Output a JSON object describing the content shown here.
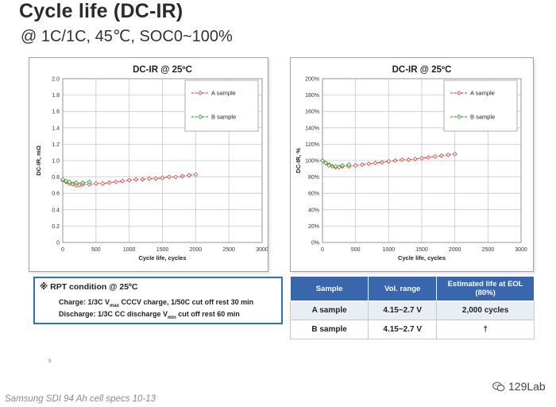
{
  "slide": {
    "title": "Cycle life (DC-IR)",
    "subtitle": "@ 1C/1C, 45℃, SOC0~100%"
  },
  "chart_data": [
    {
      "type": "line",
      "title": "DC-IR @ 25ºC",
      "xlabel": "Cycle life, cycles",
      "ylabel": "DC-IR, mΩ",
      "xlim": [
        0,
        3000
      ],
      "ylim": [
        0,
        2.0
      ],
      "x_ticks": [
        "0",
        "500",
        "1000",
        "1500",
        "2000",
        "2500",
        "3000"
      ],
      "y_ticks": [
        "0",
        "0.2",
        "0.4",
        "0.6",
        "0.8",
        "1.0",
        "1.2",
        "1.4",
        "1.6",
        "1.8",
        "2.0"
      ],
      "grid": true,
      "legend": "top-right",
      "series": [
        {
          "name": "A sample",
          "color": "#d9534f",
          "points": [
            [
              0,
              0.76
            ],
            [
              50,
              0.74
            ],
            [
              100,
              0.72
            ],
            [
              150,
              0.71
            ],
            [
              200,
              0.7
            ],
            [
              250,
              0.7
            ],
            [
              300,
              0.71
            ],
            [
              400,
              0.71
            ],
            [
              500,
              0.72
            ],
            [
              600,
              0.72
            ],
            [
              700,
              0.73
            ],
            [
              800,
              0.74
            ],
            [
              900,
              0.75
            ],
            [
              1000,
              0.76
            ],
            [
              1100,
              0.77
            ],
            [
              1200,
              0.77
            ],
            [
              1300,
              0.78
            ],
            [
              1400,
              0.78
            ],
            [
              1500,
              0.79
            ],
            [
              1600,
              0.8
            ],
            [
              1700,
              0.8
            ],
            [
              1800,
              0.81
            ],
            [
              1900,
              0.82
            ],
            [
              2000,
              0.83
            ]
          ]
        },
        {
          "name": "B sample",
          "color": "#3aaa35",
          "points": [
            [
              0,
              0.77
            ],
            [
              50,
              0.75
            ],
            [
              100,
              0.74
            ],
            [
              200,
              0.73
            ],
            [
              300,
              0.73
            ],
            [
              400,
              0.74
            ]
          ]
        }
      ]
    },
    {
      "type": "line",
      "title": "DC-IR @ 25ºC",
      "xlabel": "Cycle life, cycles",
      "ylabel": "DC-IR, %",
      "xlim": [
        0,
        3000
      ],
      "ylim": [
        0,
        200
      ],
      "x_ticks": [
        "0",
        "500",
        "1000",
        "1500",
        "2000",
        "2500",
        "3000"
      ],
      "y_ticks": [
        "0%",
        "20%",
        "40%",
        "60%",
        "80%",
        "100%",
        "120%",
        "140%",
        "160%",
        "180%",
        "200%"
      ],
      "grid": true,
      "legend": "top-right",
      "series": [
        {
          "name": "A sample",
          "color": "#d9534f",
          "points": [
            [
              0,
              100
            ],
            [
              50,
              97
            ],
            [
              100,
              95
            ],
            [
              150,
              93
            ],
            [
              200,
              92
            ],
            [
              250,
              92
            ],
            [
              300,
              93
            ],
            [
              400,
              93
            ],
            [
              500,
              94
            ],
            [
              600,
              95
            ],
            [
              700,
              96
            ],
            [
              800,
              97
            ],
            [
              900,
              98
            ],
            [
              1000,
              99
            ],
            [
              1100,
              100
            ],
            [
              1200,
              101
            ],
            [
              1300,
              101
            ],
            [
              1400,
              102
            ],
            [
              1500,
              103
            ],
            [
              1600,
              104
            ],
            [
              1700,
              105
            ],
            [
              1800,
              106
            ],
            [
              1900,
              107
            ],
            [
              2000,
              108
            ]
          ]
        },
        {
          "name": "B sample",
          "color": "#3aaa35",
          "points": [
            [
              0,
              100
            ],
            [
              50,
              97
            ],
            [
              100,
              94
            ],
            [
              200,
              93
            ],
            [
              300,
              94
            ],
            [
              400,
              95
            ]
          ]
        }
      ]
    }
  ],
  "rpt": {
    "mark": "※",
    "heading": "RPT condition @ 25ºC",
    "line1": {
      "a": "Charge: 1/3C V",
      "sub": "max",
      "b": " CCCV charge, 1/50C cut off rest 30 min"
    },
    "line2": {
      "a": "Discharge: 1/3C CC discharge V",
      "sub": "min",
      "b": " cut off   rest 60 min"
    }
  },
  "table": {
    "headers": [
      "Sample",
      "Vol. range",
      "Estimated life at EOL (80%)"
    ],
    "rows": [
      [
        "A sample",
        "4.15~2.7 V",
        "2,000 cycles"
      ],
      [
        "B sample",
        "4.15~2.7 V",
        "†"
      ]
    ]
  },
  "page_number": "9",
  "caption": "Samsung SDI 94 Ah cell specs 10-13",
  "watermark": "129Lab"
}
